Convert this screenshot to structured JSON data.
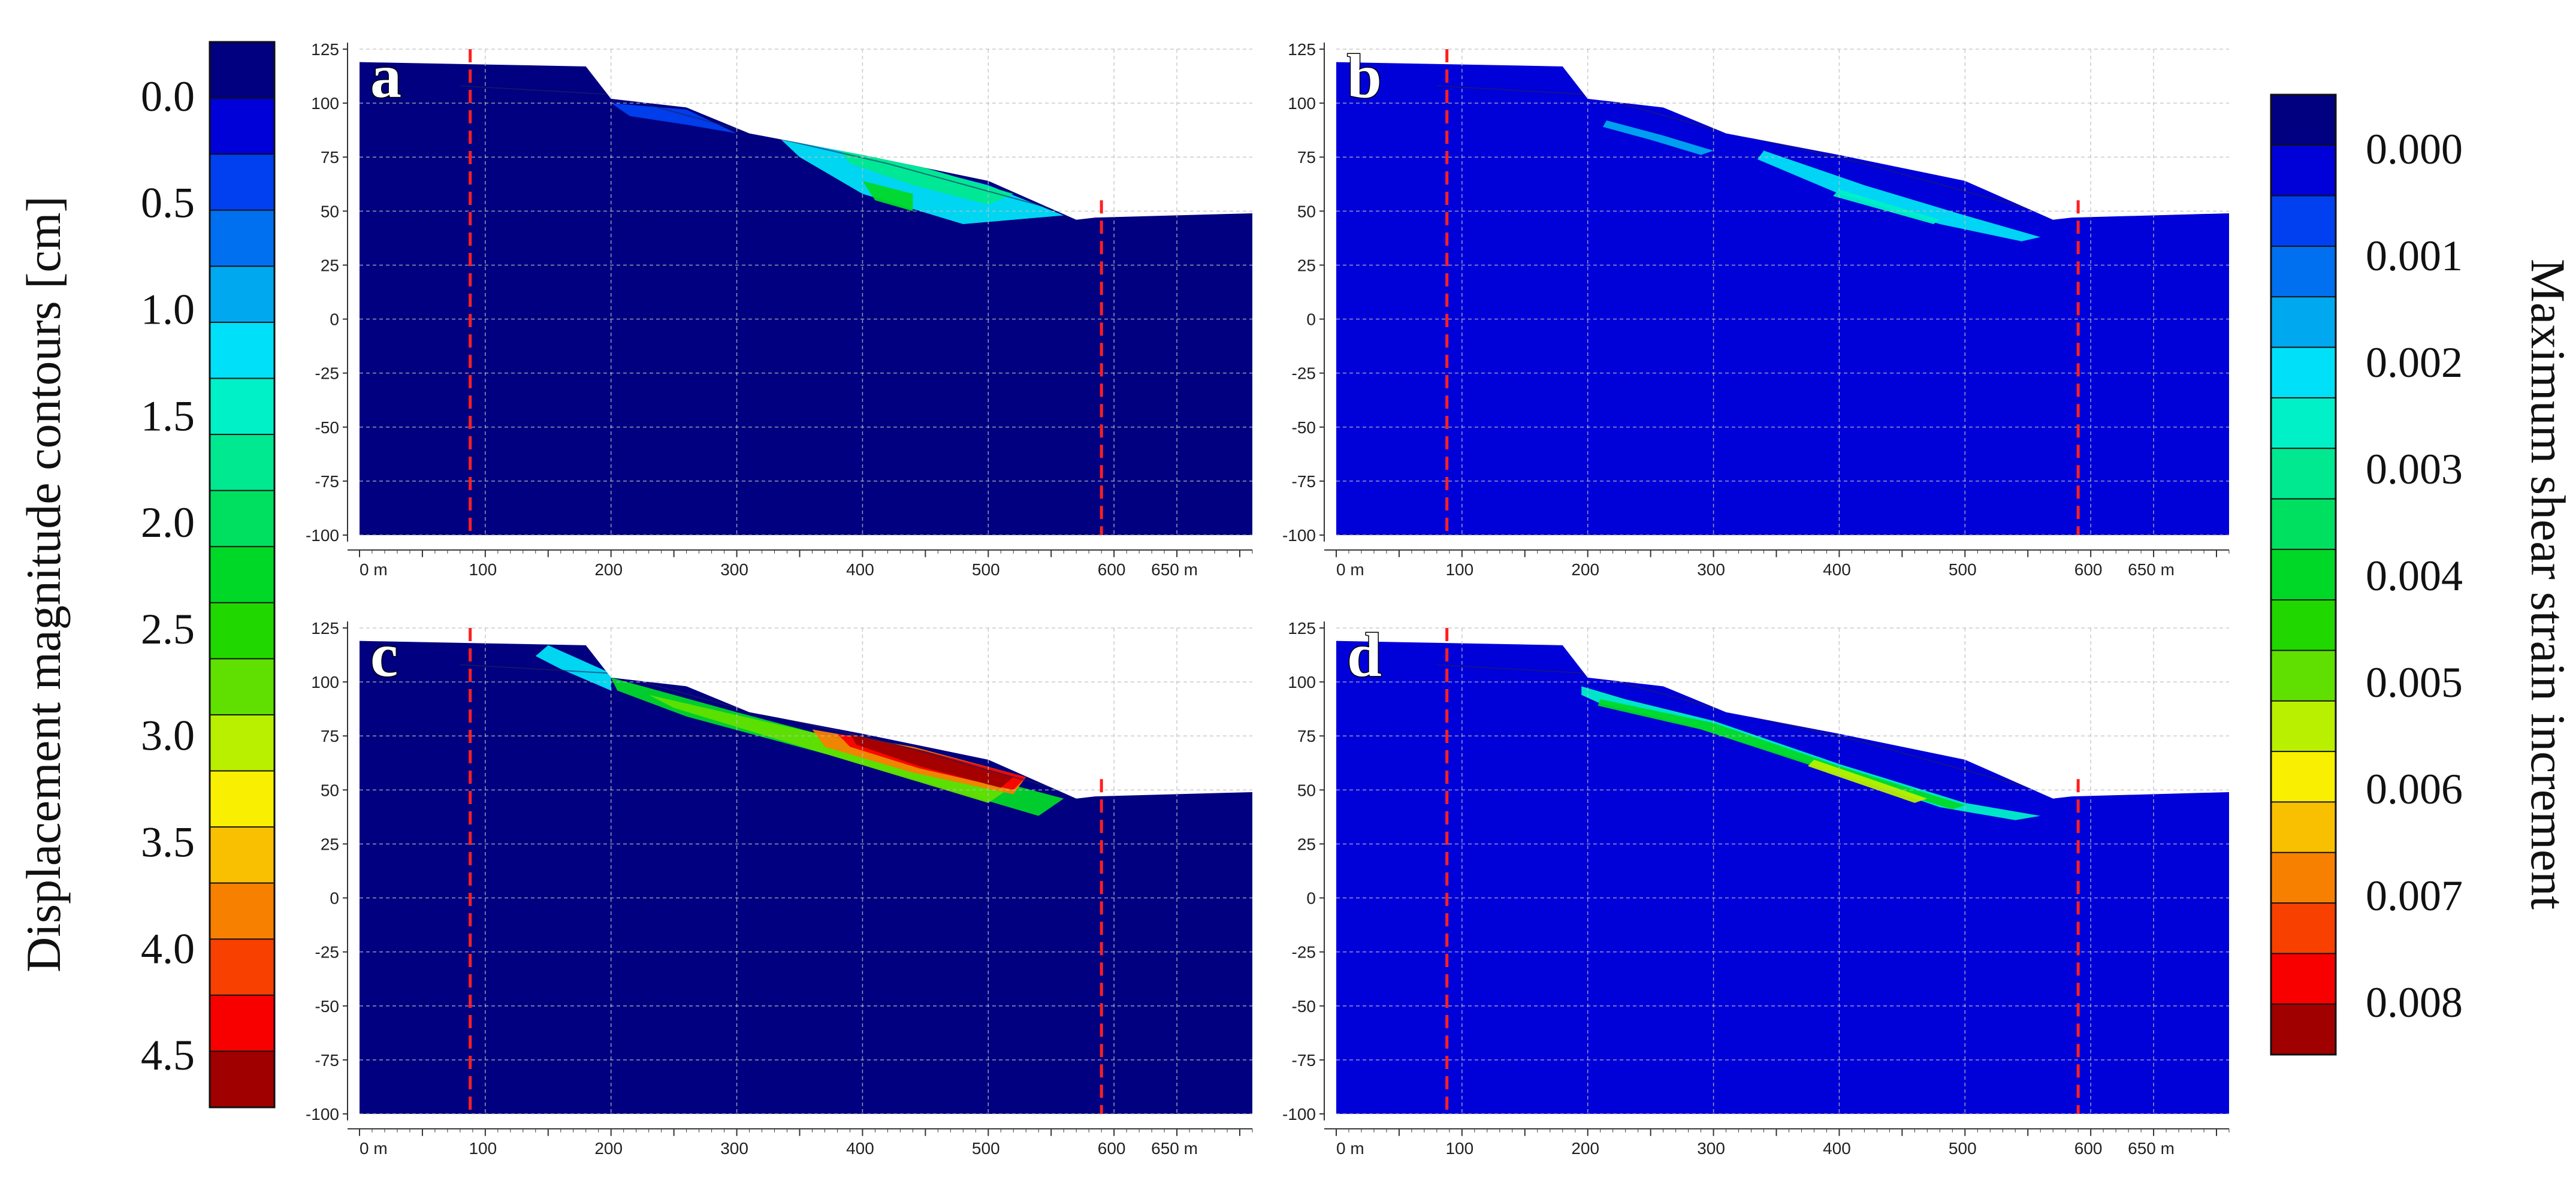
{
  "legends": {
    "left": {
      "title": "Displacement magnitude contours [cm]",
      "tick_labels": [
        "0.0",
        "0.5",
        "1.0",
        "1.5",
        "2.0",
        "2.5",
        "3.0",
        "3.5",
        "4.0",
        "4.5"
      ],
      "tick_values": [
        0.0,
        0.5,
        1.0,
        1.5,
        2.0,
        2.5,
        3.0,
        3.5,
        4.0,
        4.5
      ],
      "value_range": [
        -0.25,
        4.75
      ],
      "colors": [
        "#000080",
        "#0000d8",
        "#0040f0",
        "#0070f0",
        "#00a8f0",
        "#00e0f8",
        "#00f0c8",
        "#00e890",
        "#00e060",
        "#00d828",
        "#20d800",
        "#60e000",
        "#b8f000",
        "#f8f000",
        "#f8c000",
        "#f88000",
        "#f84000",
        "#f80000",
        "#a00000"
      ]
    },
    "right": {
      "title": "Maximum shear strain increment",
      "tick_labels": [
        "0.000",
        "0.001",
        "0.002",
        "0.003",
        "0.004",
        "0.005",
        "0.006",
        "0.007",
        "0.008"
      ],
      "tick_values": [
        0.0,
        0.001,
        0.002,
        0.003,
        0.004,
        0.005,
        0.006,
        0.007,
        0.008
      ],
      "value_range": [
        -0.0005,
        0.0085
      ],
      "colors": [
        "#000080",
        "#0000d8",
        "#0040f0",
        "#0070f0",
        "#00a8f0",
        "#00e0f8",
        "#00f0c8",
        "#00e890",
        "#00e060",
        "#00d828",
        "#20d800",
        "#60e000",
        "#b8f000",
        "#f8f000",
        "#f8c000",
        "#f88000",
        "#f84000",
        "#f80000",
        "#a00000"
      ]
    }
  },
  "chart_data": [
    {
      "panel": "a",
      "type": "heatmap",
      "field": "displacement magnitude",
      "x_ticks": [
        "0 m",
        "100",
        "200",
        "300",
        "400",
        "500",
        "600",
        "650 m"
      ],
      "x_tick_values": [
        0,
        100,
        200,
        300,
        400,
        500,
        600,
        650
      ],
      "y_ticks": [
        "125",
        "100",
        "75",
        "50",
        "25",
        "0",
        "-25",
        "-50",
        "-75",
        "-100"
      ],
      "y_tick_values": [
        125,
        100,
        75,
        50,
        25,
        0,
        -25,
        -50,
        -75,
        -100
      ],
      "xlim": [
        0,
        700
      ],
      "ylim": [
        -100,
        125
      ],
      "grid": true,
      "boundary_x": [
        88,
        590
      ],
      "ground_surface": [
        [
          0,
          119
        ],
        [
          180,
          117
        ],
        [
          200,
          102
        ],
        [
          260,
          98
        ],
        [
          310,
          86
        ],
        [
          400,
          76
        ],
        [
          500,
          64
        ],
        [
          570,
          46
        ],
        [
          585,
          47
        ],
        [
          700,
          49
        ]
      ],
      "zones": [
        {
          "region": [
            [
              200,
              100
            ],
            [
              260,
              97
            ],
            [
              300,
              86
            ],
            [
              260,
              90
            ],
            [
              215,
              94
            ]
          ],
          "value": 0.4
        },
        {
          "region": [
            [
              330,
              86
            ],
            [
              420,
              74
            ],
            [
              500,
              62
            ],
            [
              560,
              48
            ],
            [
              480,
              44
            ],
            [
              400,
              58
            ],
            [
              350,
              75
            ]
          ],
          "value": 1.1
        },
        {
          "region": [
            [
              380,
              80
            ],
            [
              450,
              70
            ],
            [
              520,
              58
            ],
            [
              500,
              53
            ],
            [
              440,
              62
            ],
            [
              390,
              72
            ]
          ],
          "value": 1.6
        },
        {
          "region": [
            [
              400,
              64
            ],
            [
              440,
              58
            ],
            [
              440,
              50
            ],
            [
              410,
              55
            ]
          ],
          "value": 2.2
        }
      ]
    },
    {
      "panel": "b",
      "type": "heatmap",
      "field": "maximum shear strain increment",
      "x_ticks": [
        "0 m",
        "100",
        "200",
        "300",
        "400",
        "500",
        "600",
        "650 m"
      ],
      "x_tick_values": [
        0,
        100,
        200,
        300,
        400,
        500,
        600,
        650
      ],
      "y_ticks": [
        "125",
        "100",
        "75",
        "50",
        "25",
        "0",
        "-25",
        "-50",
        "-75",
        "-100"
      ],
      "y_tick_values": [
        125,
        100,
        75,
        50,
        25,
        0,
        -25,
        -50,
        -75,
        -100
      ],
      "xlim": [
        0,
        700
      ],
      "ylim": [
        -100,
        125
      ],
      "grid": true,
      "boundary_x": [
        88,
        590
      ],
      "ground_surface": [
        [
          0,
          119
        ],
        [
          180,
          117
        ],
        [
          200,
          102
        ],
        [
          260,
          98
        ],
        [
          310,
          86
        ],
        [
          400,
          76
        ],
        [
          500,
          64
        ],
        [
          570,
          46
        ],
        [
          585,
          47
        ],
        [
          700,
          49
        ]
      ],
      "zones": [
        {
          "region": [
            [
              215,
              92
            ],
            [
              260,
              85
            ],
            [
              300,
              78
            ],
            [
              290,
              76
            ],
            [
              250,
              83
            ],
            [
              212,
              89
            ]
          ],
          "value": 0.0015
        },
        {
          "region": [
            [
              340,
              78
            ],
            [
              420,
              62
            ],
            [
              500,
              48
            ],
            [
              560,
              38
            ],
            [
              545,
              36
            ],
            [
              480,
              44
            ],
            [
              400,
              58
            ],
            [
              335,
              74
            ]
          ],
          "value": 0.002
        },
        {
          "region": [
            [
              400,
              60
            ],
            [
              480,
              46
            ],
            [
              475,
              44
            ],
            [
              395,
              57
            ]
          ],
          "value": 0.0025
        }
      ]
    },
    {
      "panel": "c",
      "type": "heatmap",
      "field": "displacement magnitude",
      "x_ticks": [
        "0 m",
        "100",
        "200",
        "300",
        "400",
        "500",
        "600",
        "650 m"
      ],
      "x_tick_values": [
        0,
        100,
        200,
        300,
        400,
        500,
        600,
        650
      ],
      "y_ticks": [
        "125",
        "100",
        "75",
        "50",
        "25",
        "0",
        "-25",
        "-50",
        "-75",
        "-100"
      ],
      "y_tick_values": [
        125,
        100,
        75,
        50,
        25,
        0,
        -25,
        -50,
        -75,
        -100
      ],
      "xlim": [
        0,
        700
      ],
      "ylim": [
        -100,
        125
      ],
      "grid": true,
      "boundary_x": [
        88,
        590
      ],
      "ground_surface": [
        [
          0,
          119
        ],
        [
          180,
          117
        ],
        [
          200,
          102
        ],
        [
          260,
          98
        ],
        [
          310,
          86
        ],
        [
          400,
          76
        ],
        [
          500,
          64
        ],
        [
          570,
          46
        ],
        [
          585,
          47
        ],
        [
          700,
          49
        ]
      ],
      "zones": [
        {
          "region": [
            [
              150,
              117
            ],
            [
              200,
              104
            ],
            [
              200,
              96
            ],
            [
              160,
              106
            ],
            [
              140,
              112
            ]
          ],
          "value": 1.2
        },
        {
          "region": [
            [
              200,
              102
            ],
            [
              300,
              86
            ],
            [
              560,
              46
            ],
            [
              540,
              38
            ],
            [
              400,
              62
            ],
            [
              260,
              84
            ],
            [
              205,
              96
            ]
          ],
          "value": 2.3
        },
        {
          "region": [
            [
              230,
              94
            ],
            [
              290,
              86
            ],
            [
              380,
              74
            ],
            [
              520,
              52
            ],
            [
              500,
              44
            ],
            [
              380,
              65
            ],
            [
              250,
              88
            ]
          ],
          "value": 2.9
        },
        {
          "region": [
            [
              360,
              78
            ],
            [
              440,
              70
            ],
            [
              530,
              56
            ],
            [
              520,
              48
            ],
            [
              440,
              58
            ],
            [
              370,
              70
            ]
          ],
          "value": 3.7
        },
        {
          "region": [
            [
              380,
              76
            ],
            [
              450,
              68
            ],
            [
              530,
              56
            ],
            [
              520,
              50
            ],
            [
              445,
              60
            ],
            [
              390,
              70
            ]
          ],
          "value": 4.3
        },
        {
          "region": [
            [
              390,
              76
            ],
            [
              450,
              68
            ],
            [
              520,
              56
            ],
            [
              510,
              51
            ],
            [
              445,
              61
            ],
            [
              395,
              71
            ]
          ],
          "value": 4.7
        }
      ]
    },
    {
      "panel": "d",
      "type": "heatmap",
      "field": "maximum shear strain increment",
      "x_ticks": [
        "0 m",
        "100",
        "200",
        "300",
        "400",
        "500",
        "600",
        "650 m"
      ],
      "x_tick_values": [
        0,
        100,
        200,
        300,
        400,
        500,
        600,
        650
      ],
      "y_ticks": [
        "125",
        "100",
        "75",
        "50",
        "25",
        "0",
        "-25",
        "-50",
        "-75",
        "-100"
      ],
      "y_tick_values": [
        125,
        100,
        75,
        50,
        25,
        0,
        -25,
        -50,
        -75,
        -100
      ],
      "xlim": [
        0,
        700
      ],
      "ylim": [
        -100,
        125
      ],
      "grid": true,
      "boundary_x": [
        88,
        590
      ],
      "ground_surface": [
        [
          0,
          119
        ],
        [
          180,
          117
        ],
        [
          200,
          102
        ],
        [
          260,
          98
        ],
        [
          310,
          86
        ],
        [
          400,
          76
        ],
        [
          500,
          64
        ],
        [
          570,
          46
        ],
        [
          585,
          47
        ],
        [
          700,
          49
        ]
      ],
      "zones": [
        {
          "region": [
            [
              195,
              98
            ],
            [
              230,
              92
            ],
            [
              300,
              82
            ],
            [
              400,
              62
            ],
            [
              500,
              44
            ],
            [
              560,
              38
            ],
            [
              540,
              36
            ],
            [
              480,
              42
            ],
            [
              390,
              60
            ],
            [
              280,
              80
            ],
            [
              210,
              90
            ],
            [
              195,
              94
            ]
          ],
          "value": 0.0025
        },
        {
          "region": [
            [
              210,
              92
            ],
            [
              300,
              81
            ],
            [
              400,
              61
            ],
            [
              500,
              43
            ],
            [
              490,
              41
            ],
            [
              395,
              58
            ],
            [
              290,
              78
            ],
            [
              208,
              89
            ]
          ],
          "value": 0.004
        },
        {
          "region": [
            [
              380,
              64
            ],
            [
              430,
              54
            ],
            [
              470,
              46
            ],
            [
              460,
              44
            ],
            [
              420,
              52
            ],
            [
              375,
              61
            ]
          ],
          "value": 0.0055
        }
      ]
    }
  ]
}
